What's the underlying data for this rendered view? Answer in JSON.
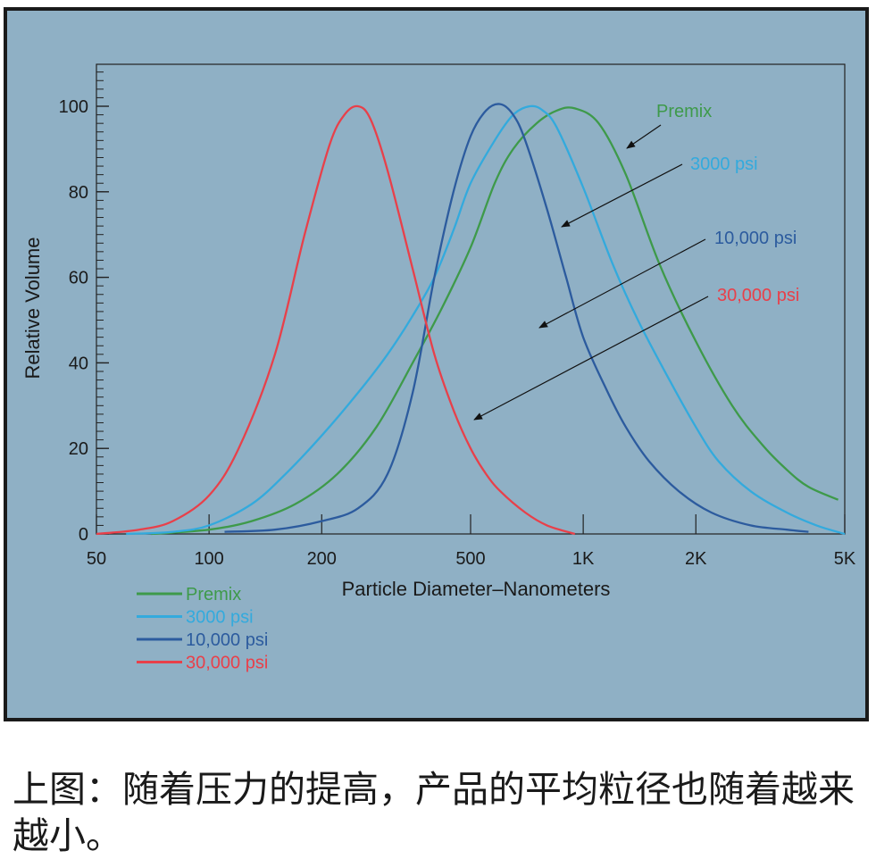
{
  "chart_data": {
    "type": "line",
    "xscale": "log",
    "xlabel": "Particle Diameter–Nanometers",
    "ylabel": "Relative Volume",
    "xlim": [
      50,
      5000
    ],
    "ylim": [
      0,
      110
    ],
    "x_ticks": [
      {
        "value": 50,
        "label": "50"
      },
      {
        "value": 100,
        "label": "100"
      },
      {
        "value": 200,
        "label": "200"
      },
      {
        "value": 500,
        "label": "500"
      },
      {
        "value": 1000,
        "label": "1K"
      },
      {
        "value": 2000,
        "label": "2K"
      },
      {
        "value": 5000,
        "label": "5K"
      }
    ],
    "y_ticks": [
      {
        "value": 0,
        "label": "0"
      },
      {
        "value": 20,
        "label": "20"
      },
      {
        "value": 40,
        "label": "40"
      },
      {
        "value": 60,
        "label": "60"
      },
      {
        "value": 80,
        "label": "80"
      },
      {
        "value": 100,
        "label": "100"
      }
    ],
    "grid": false,
    "legend_position": "bottom-left",
    "series": [
      {
        "name": "Premix",
        "color": "#3e9a4a",
        "x": [
          70,
          100,
          130,
          170,
          220,
          280,
          350,
          420,
          500,
          580,
          650,
          750,
          850,
          950,
          1100,
          1300,
          1600,
          2000,
          2500,
          3000,
          3500,
          4000,
          4800
        ],
        "y": [
          0,
          1,
          3,
          7,
          14,
          25,
          40,
          53,
          67,
          82,
          90,
          96,
          99,
          99.5,
          96,
          84,
          63,
          45,
          30,
          21,
          15,
          11,
          8
        ]
      },
      {
        "name": "3000 psi",
        "color": "#33aadd",
        "x": [
          60,
          80,
          100,
          130,
          160,
          200,
          250,
          300,
          350,
          400,
          450,
          500,
          580,
          650,
          720,
          780,
          850,
          1000,
          1200,
          1400,
          1700,
          2000,
          2300,
          2800,
          3500,
          4200,
          5000
        ],
        "y": [
          0,
          0.5,
          2,
          7,
          14,
          23,
          33,
          42,
          51,
          60,
          71,
          82,
          92,
          98,
          100,
          99,
          95,
          81,
          63,
          50,
          36,
          25,
          17,
          10,
          5,
          2,
          0
        ]
      },
      {
        "name": "10,000 psi",
        "color": "#2c5b9e",
        "x": [
          110,
          150,
          200,
          250,
          300,
          350,
          400,
          450,
          500,
          550,
          600,
          650,
          700,
          800,
          900,
          1000,
          1150,
          1300,
          1500,
          1800,
          2200,
          2800,
          3500,
          4000
        ],
        "y": [
          0.5,
          1,
          3,
          6,
          14,
          33,
          60,
          80,
          93,
          99,
          100.5,
          98,
          92,
          76,
          60,
          46,
          34,
          25,
          17,
          10,
          5,
          2,
          1,
          0.5
        ]
      },
      {
        "name": "30,000 psi",
        "color": "#e8404a",
        "x": [
          50,
          65,
          80,
          100,
          120,
          150,
          180,
          210,
          230,
          250,
          270,
          300,
          350,
          400,
          450,
          500,
          550,
          600,
          700,
          800,
          950
        ],
        "y": [
          0,
          1,
          3,
          9,
          20,
          42,
          70,
          91,
          98,
          100,
          97,
          85,
          62,
          42,
          29,
          20,
          14,
          10,
          5,
          2,
          0
        ]
      }
    ],
    "annotations": [
      "Premix",
      "3000 psi",
      "10,000 psi",
      "30,000 psi"
    ]
  },
  "caption": "上图：随着压力的提高，产品的平均粒径也随着越来越小。"
}
